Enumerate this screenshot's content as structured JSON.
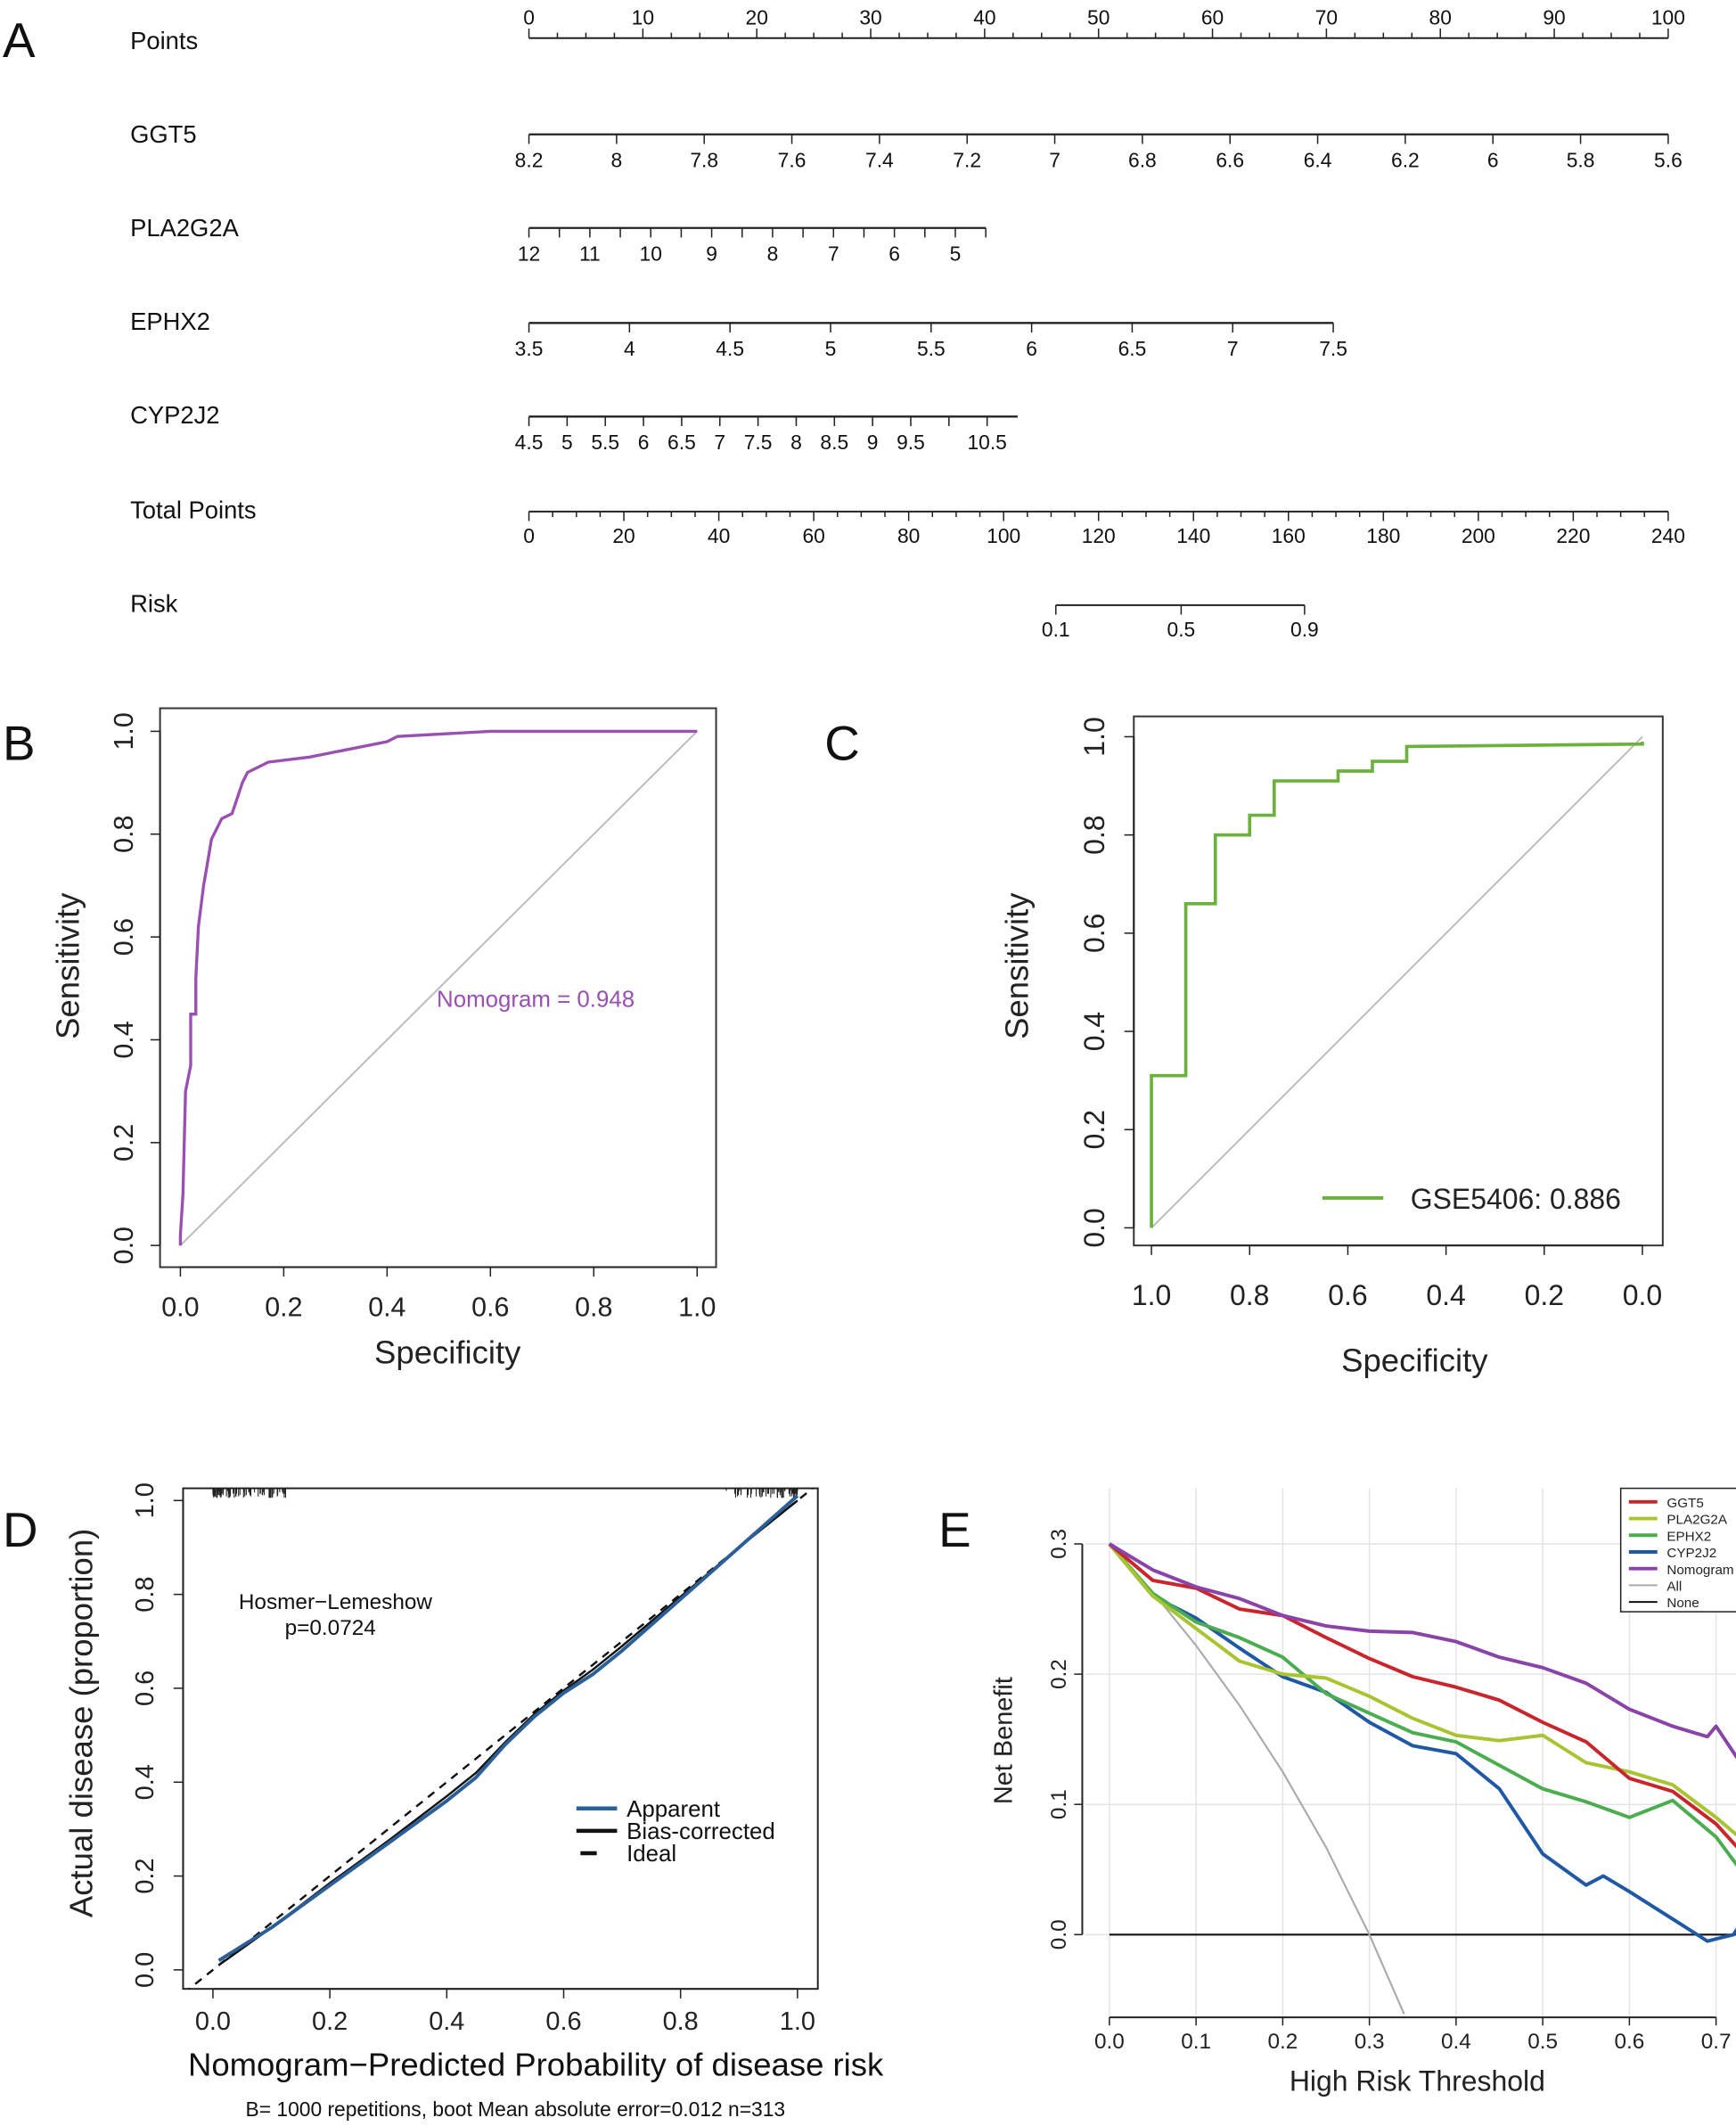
{
  "panel_letters": [
    "A",
    "B",
    "C",
    "D",
    "E"
  ],
  "chart_data": [
    {
      "type": "nomogram",
      "panel": "A",
      "points_axis": {
        "name": "Points",
        "range": [
          0,
          100
        ],
        "labels": [
          0,
          10,
          20,
          30,
          40,
          50,
          60,
          70,
          80,
          90,
          100
        ]
      },
      "variables": [
        {
          "name": "GGT5",
          "range": [
            8.2,
            5.6
          ],
          "points": [
            0,
            100
          ],
          "labels": [
            "8.2",
            "8",
            "7.8",
            "7.6",
            "7.4",
            "7.2",
            "7",
            "6.8",
            "6.6",
            "6.4",
            "6.2",
            "6",
            "5.8",
            "5.6"
          ]
        },
        {
          "name": "PLA2G2A",
          "range": [
            12,
            4.5
          ],
          "points": [
            0,
            40.1
          ],
          "labels": [
            "12",
            "11",
            "10",
            "9",
            "8",
            "7",
            "6",
            "5"
          ]
        },
        {
          "name": "EPHX2",
          "range": [
            3.5,
            7.5
          ],
          "points": [
            0,
            70.6
          ],
          "labels": [
            "3.5",
            "4",
            "4.5",
            "5",
            "5.5",
            "6",
            "6.5",
            "7",
            "7.5"
          ]
        },
        {
          "name": "CYP2J2",
          "range": [
            4.5,
            10.9
          ],
          "points": [
            0,
            42.9
          ],
          "labels": [
            "4.5",
            "5",
            "5.5",
            "6",
            "6.5",
            "7",
            "7.5",
            "8",
            "8.5",
            "9",
            "9.5",
            "10.5"
          ]
        }
      ],
      "total_points": {
        "name": "Total Points",
        "range": [
          0,
          240
        ],
        "labels": [
          0,
          20,
          40,
          60,
          80,
          100,
          120,
          140,
          160,
          180,
          200,
          220,
          240
        ]
      },
      "risk": {
        "name": "Risk",
        "ticks": [
          {
            "label": "0.1",
            "total_points": 111
          },
          {
            "label": "0.5",
            "total_points": 137.4
          },
          {
            "label": "0.9",
            "total_points": 163.4
          }
        ]
      }
    },
    {
      "type": "line",
      "panel": "B",
      "xlabel": "Specificity",
      "ylabel": "Sensitivity",
      "xlim": [
        0,
        1
      ],
      "ylim": [
        0,
        1
      ],
      "xticks": [
        "0.0",
        "0.2",
        "0.4",
        "0.6",
        "0.8",
        "1.0"
      ],
      "yticks": [
        "0.0",
        "0.2",
        "0.4",
        "0.6",
        "0.8",
        "1.0"
      ],
      "annotation": "Nomogram = 0.948",
      "color": "#9a4fb2",
      "reference_line_color": "#b8b8b8",
      "x": [
        0,
        0,
        0.005,
        0.01,
        0.02,
        0.02,
        0.03,
        0.03,
        0.035,
        0.04,
        0.045,
        0.05,
        0.055,
        0.06,
        0.07,
        0.08,
        0.1,
        0.11,
        0.12,
        0.13,
        0.15,
        0.17,
        0.25,
        0.3,
        0.4,
        0.42,
        0.6,
        1.0
      ],
      "y": [
        0,
        0.02,
        0.1,
        0.3,
        0.35,
        0.45,
        0.45,
        0.52,
        0.62,
        0.66,
        0.7,
        0.73,
        0.76,
        0.79,
        0.81,
        0.83,
        0.84,
        0.87,
        0.9,
        0.92,
        0.93,
        0.94,
        0.95,
        0.96,
        0.98,
        0.99,
        1.0,
        1.0
      ]
    },
    {
      "type": "line",
      "panel": "C",
      "xlabel": "Specificity",
      "ylabel": "Sensitivity",
      "xlim": [
        1,
        0
      ],
      "ylim": [
        0,
        1
      ],
      "xticks": [
        "1.0",
        "0.8",
        "0.6",
        "0.4",
        "0.2",
        "0.0"
      ],
      "yticks": [
        "0.0",
        "0.2",
        "0.4",
        "0.6",
        "0.8",
        "1.0"
      ],
      "legend": "GSE5406: 0.886",
      "legend_position": "bottom-right",
      "color": "#6bb23c",
      "reference_line_color": "#b8b8b8",
      "x": [
        1.0,
        1.0,
        0.93,
        0.93,
        0.87,
        0.87,
        0.8,
        0.8,
        0.75,
        0.75,
        0.62,
        0.62,
        0.55,
        0.55,
        0.48,
        0.48,
        0.0,
        0.0
      ],
      "y": [
        0,
        0.31,
        0.31,
        0.66,
        0.66,
        0.8,
        0.8,
        0.84,
        0.84,
        0.91,
        0.91,
        0.93,
        0.93,
        0.95,
        0.95,
        0.98,
        0.985,
        0.99
      ]
    },
    {
      "type": "line",
      "panel": "D",
      "xlabel": "Nomogram−Predicted Probability of disease risk",
      "ylabel": "Actual disease (proportion)",
      "subtitle": "B= 1000 repetitions, boot   Mean absolute error=0.012 n=313",
      "annotation": [
        "Hosmer−Lemeshow",
        "p=0.0724"
      ],
      "xlim": [
        0,
        1
      ],
      "ylim": [
        0,
        1
      ],
      "xticks": [
        "0.0",
        "0.2",
        "0.4",
        "0.6",
        "0.8",
        "1.0"
      ],
      "yticks": [
        "0.0",
        "0.2",
        "0.4",
        "0.6",
        "0.8",
        "1.0"
      ],
      "legend_position": "center-right",
      "series": [
        {
          "name": "Apparent",
          "color": "#2b5f97",
          "style": "solid",
          "x": [
            0.01,
            0.1,
            0.2,
            0.3,
            0.4,
            0.45,
            0.5,
            0.55,
            0.6,
            0.65,
            0.7,
            0.8,
            0.9,
            1.0
          ],
          "y": [
            0.02,
            0.09,
            0.18,
            0.27,
            0.36,
            0.41,
            0.48,
            0.54,
            0.59,
            0.63,
            0.68,
            0.79,
            0.9,
            1.01
          ]
        },
        {
          "name": "Bias-corrected",
          "color": "#111111",
          "style": "solid",
          "x": [
            0.01,
            0.1,
            0.2,
            0.3,
            0.4,
            0.45,
            0.5,
            0.55,
            0.6,
            0.65,
            0.7,
            0.8,
            0.9,
            1.0
          ],
          "y": [
            0.01,
            0.09,
            0.185,
            0.275,
            0.37,
            0.42,
            0.485,
            0.545,
            0.595,
            0.64,
            0.69,
            0.795,
            0.9,
            1.0
          ]
        },
        {
          "name": "Ideal",
          "color": "#111111",
          "style": "dashed",
          "x": [
            -0.05,
            1.05
          ],
          "y": [
            -0.05,
            1.05
          ]
        }
      ]
    },
    {
      "type": "line",
      "panel": "E",
      "xlabel": "High Risk Threshold",
      "ylabel": "Net Benefit",
      "xlim": [
        0,
        0.73
      ],
      "ylim": [
        -0.065,
        0.3
      ],
      "xticks": [
        "0.0",
        "0.1",
        "0.2",
        "0.3",
        "0.4",
        "0.5",
        "0.6",
        "0.7"
      ],
      "yticks": [
        "0.0",
        "0.1",
        "0.2",
        "0.3"
      ],
      "grid": true,
      "legend_position": "top-right",
      "series": [
        {
          "name": "GGT5",
          "color": "#c8252c",
          "x": [
            0,
            0.05,
            0.1,
            0.15,
            0.2,
            0.25,
            0.3,
            0.35,
            0.4,
            0.45,
            0.5,
            0.55,
            0.6,
            0.65,
            0.7,
            0.73
          ],
          "y": [
            0.3,
            0.272,
            0.266,
            0.25,
            0.245,
            0.228,
            0.212,
            0.198,
            0.19,
            0.18,
            0.163,
            0.148,
            0.12,
            0.11,
            0.085,
            0.063
          ]
        },
        {
          "name": "PLA2G2A",
          "color": "#a8c430",
          "x": [
            0,
            0.05,
            0.1,
            0.15,
            0.2,
            0.25,
            0.3,
            0.35,
            0.4,
            0.45,
            0.5,
            0.55,
            0.6,
            0.65,
            0.7,
            0.73
          ],
          "y": [
            0.3,
            0.26,
            0.235,
            0.21,
            0.2,
            0.197,
            0.183,
            0.166,
            0.153,
            0.149,
            0.153,
            0.132,
            0.125,
            0.115,
            0.09,
            0.073
          ]
        },
        {
          "name": "EPHX2",
          "color": "#4bad4f",
          "x": [
            0,
            0.05,
            0.1,
            0.15,
            0.2,
            0.25,
            0.3,
            0.35,
            0.4,
            0.45,
            0.5,
            0.55,
            0.6,
            0.65,
            0.7,
            0.73
          ],
          "y": [
            0.3,
            0.262,
            0.24,
            0.228,
            0.213,
            0.185,
            0.17,
            0.155,
            0.148,
            0.13,
            0.112,
            0.102,
            0.09,
            0.103,
            0.075,
            0.048
          ]
        },
        {
          "name": "CYP2J2",
          "color": "#1f59a5",
          "x": [
            0,
            0.05,
            0.1,
            0.15,
            0.2,
            0.25,
            0.3,
            0.35,
            0.4,
            0.45,
            0.5,
            0.55,
            0.57,
            0.6,
            0.65,
            0.69,
            0.72,
            0.73
          ],
          "y": [
            0.3,
            0.26,
            0.243,
            0.22,
            0.198,
            0.186,
            0.163,
            0.145,
            0.139,
            0.112,
            0.062,
            0.038,
            0.045,
            0.033,
            0.012,
            -0.005,
            0,
            0.01
          ]
        },
        {
          "name": "Nomogram",
          "color": "#8a44a8",
          "x": [
            0,
            0.05,
            0.1,
            0.15,
            0.2,
            0.25,
            0.3,
            0.35,
            0.4,
            0.45,
            0.5,
            0.55,
            0.6,
            0.65,
            0.69,
            0.7,
            0.73
          ],
          "y": [
            0.3,
            0.28,
            0.267,
            0.258,
            0.245,
            0.237,
            0.233,
            0.232,
            0.225,
            0.213,
            0.205,
            0.193,
            0.173,
            0.16,
            0.152,
            0.16,
            0.13
          ]
        },
        {
          "name": "All",
          "color": "#aaaaaa",
          "x": [
            0,
            0.05,
            0.1,
            0.15,
            0.2,
            0.25,
            0.3,
            0.34
          ],
          "y": [
            0.3,
            0.263,
            0.222,
            0.176,
            0.125,
            0.067,
            0,
            -0.061
          ]
        },
        {
          "name": "None",
          "color": "#111111",
          "x": [
            0,
            0.73
          ],
          "y": [
            0,
            0
          ]
        }
      ]
    }
  ]
}
